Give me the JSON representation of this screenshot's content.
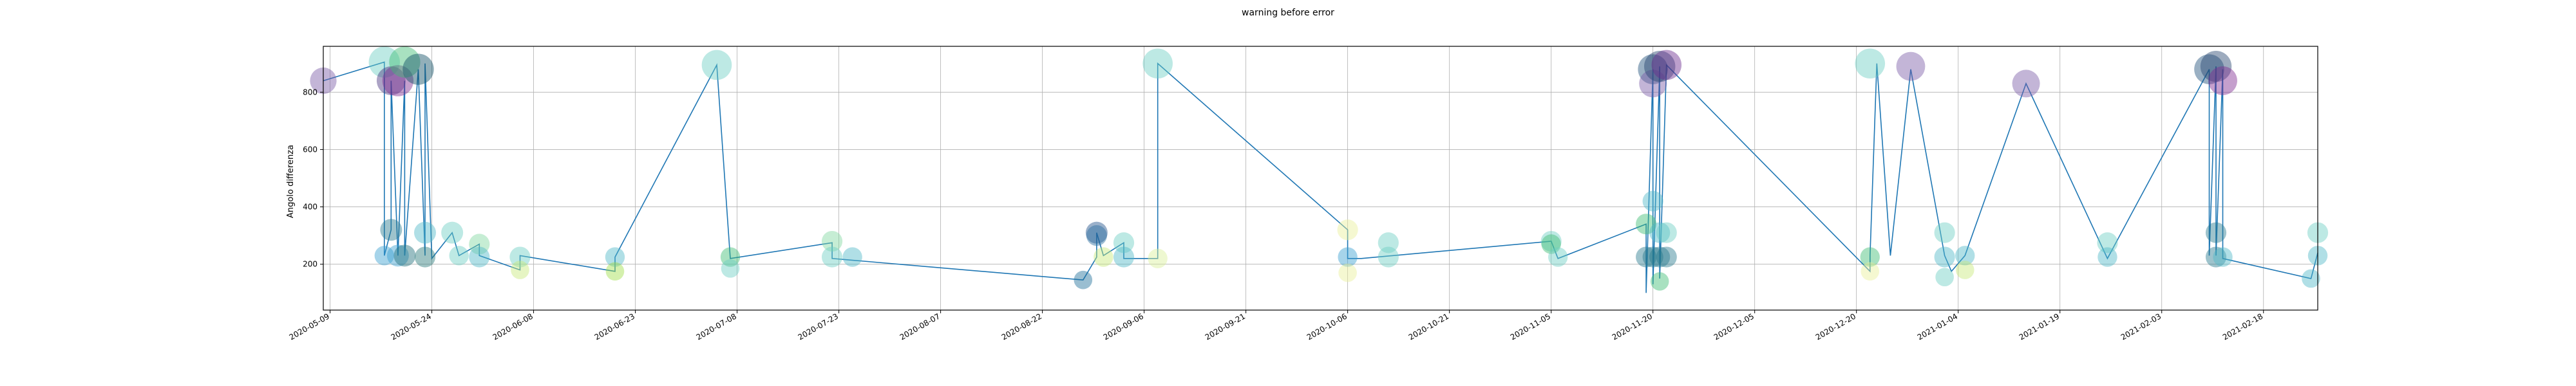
{
  "chart_data": {
    "type": "scatter",
    "title": "warning before error",
    "xlabel": "",
    "ylabel": "Angolo differenza",
    "x_ticks": [
      "2020-05-09",
      "2020-05-24",
      "2020-06-08",
      "2020-06-23",
      "2020-07-08",
      "2020-07-23",
      "2020-08-07",
      "2020-08-22",
      "2020-09-06",
      "2020-09-21",
      "2020-10-06",
      "2020-10-21",
      "2020-11-05",
      "2020-11-20",
      "2020-12-05",
      "2020-12-20",
      "2021-01-04",
      "2021-01-19",
      "2021-02-03",
      "2021-02-18"
    ],
    "y_ticks": [
      200,
      400,
      600,
      800
    ],
    "xlim": [
      "2020-05-08",
      "2021-02-26"
    ],
    "ylim": [
      40,
      960
    ],
    "grid": true,
    "line_color": "#1f77b4",
    "line": [
      [
        "2020-05-08",
        840
      ],
      [
        "2020-05-17",
        905
      ],
      [
        "2020-05-17",
        230
      ],
      [
        "2020-05-18",
        320
      ],
      [
        "2020-05-18",
        840
      ],
      [
        "2020-05-19",
        230
      ],
      [
        "2020-05-20",
        840
      ],
      [
        "2020-05-20",
        230
      ],
      [
        "2020-05-22",
        880
      ],
      [
        "2020-05-23",
        230
      ],
      [
        "2020-05-23",
        900
      ],
      [
        "2020-05-24",
        220
      ],
      [
        "2020-05-27",
        310
      ],
      [
        "2020-05-28",
        230
      ],
      [
        "2020-05-31",
        270
      ],
      [
        "2020-05-31",
        230
      ],
      [
        "2020-06-06",
        180
      ],
      [
        "2020-06-06",
        230
      ],
      [
        "2020-06-20",
        175
      ],
      [
        "2020-06-20",
        225
      ],
      [
        "2020-07-05",
        895
      ],
      [
        "2020-07-07",
        220
      ],
      [
        "2020-07-22",
        275
      ],
      [
        "2020-07-22",
        220
      ],
      [
        "2020-08-28",
        145
      ],
      [
        "2020-08-30",
        225
      ],
      [
        "2020-08-30",
        310
      ],
      [
        "2020-08-31",
        230
      ],
      [
        "2020-09-03",
        275
      ],
      [
        "2020-09-03",
        220
      ],
      [
        "2020-09-08",
        220
      ],
      [
        "2020-09-08",
        900
      ],
      [
        "2020-10-06",
        320
      ],
      [
        "2020-10-06",
        220
      ],
      [
        "2020-10-08",
        220
      ],
      [
        "2020-11-05",
        280
      ],
      [
        "2020-11-06",
        220
      ],
      [
        "2020-11-19",
        340
      ],
      [
        "2020-11-19",
        100
      ],
      [
        "2020-11-20",
        880
      ],
      [
        "2020-11-20",
        130
      ],
      [
        "2020-11-21",
        890
      ],
      [
        "2020-11-21",
        150
      ],
      [
        "2020-11-22",
        895
      ],
      [
        "2020-12-22",
        175
      ],
      [
        "2020-12-22",
        230
      ],
      [
        "2020-12-23",
        900
      ],
      [
        "2020-12-25",
        230
      ],
      [
        "2020-12-28",
        880
      ],
      [
        "2021-01-02",
        230
      ],
      [
        "2021-01-03",
        175
      ],
      [
        "2021-01-05",
        230
      ],
      [
        "2021-01-14",
        830
      ],
      [
        "2021-01-26",
        220
      ],
      [
        "2021-02-10",
        880
      ],
      [
        "2021-02-10",
        230
      ],
      [
        "2021-02-11",
        890
      ],
      [
        "2021-02-11",
        230
      ],
      [
        "2021-02-12",
        880
      ],
      [
        "2021-02-12",
        220
      ],
      [
        "2021-02-25",
        150
      ],
      [
        "2021-02-26",
        240
      ]
    ],
    "points": [
      {
        "x": "2020-05-08",
        "y": 840,
        "size": 0.7,
        "color": "#7b5aa6"
      },
      {
        "x": "2020-05-17",
        "y": 905,
        "size": 0.9,
        "color": "#6dcfc3"
      },
      {
        "x": "2020-05-17",
        "y": 230,
        "size": 0.4,
        "color": "#3a9fd0"
      },
      {
        "x": "2020-05-18",
        "y": 320,
        "size": 0.5,
        "color": "#287a8e"
      },
      {
        "x": "2020-05-18",
        "y": 840,
        "size": 0.8,
        "color": "#46337e"
      },
      {
        "x": "2020-05-19",
        "y": 230,
        "size": 0.5,
        "color": "#3a9fd0"
      },
      {
        "x": "2020-05-19",
        "y": 840,
        "size": 0.9,
        "color": "#7e2a90"
      },
      {
        "x": "2020-05-20",
        "y": 905,
        "size": 0.9,
        "color": "#3fbc73"
      },
      {
        "x": "2020-05-20",
        "y": 230,
        "size": 0.5,
        "color": "#1f6f7a"
      },
      {
        "x": "2020-05-22",
        "y": 880,
        "size": 0.9,
        "color": "#0e4d64"
      },
      {
        "x": "2020-05-23",
        "y": 310,
        "size": 0.5,
        "color": "#4fb8c8"
      },
      {
        "x": "2020-05-23",
        "y": 225,
        "size": 0.45,
        "color": "#2b7a7a"
      },
      {
        "x": "2020-05-27",
        "y": 310,
        "size": 0.5,
        "color": "#6dcfc3"
      },
      {
        "x": "2020-05-28",
        "y": 230,
        "size": 0.4,
        "color": "#6dcfc3"
      },
      {
        "x": "2020-05-31",
        "y": 270,
        "size": 0.45,
        "color": "#80d7a0"
      },
      {
        "x": "2020-05-31",
        "y": 225,
        "size": 0.45,
        "color": "#4fb8c8"
      },
      {
        "x": "2020-06-06",
        "y": 225,
        "size": 0.45,
        "color": "#6dcfc3"
      },
      {
        "x": "2020-06-06",
        "y": 180,
        "size": 0.35,
        "color": "#c8e87a"
      },
      {
        "x": "2020-06-20",
        "y": 225,
        "size": 0.4,
        "color": "#4fb8c8"
      },
      {
        "x": "2020-06-20",
        "y": 175,
        "size": 0.35,
        "color": "#9fde4a"
      },
      {
        "x": "2020-07-05",
        "y": 895,
        "size": 0.85,
        "color": "#6dcfc3"
      },
      {
        "x": "2020-07-07",
        "y": 225,
        "size": 0.4,
        "color": "#3fbc73"
      },
      {
        "x": "2020-07-07",
        "y": 185,
        "size": 0.35,
        "color": "#6dcfc3"
      },
      {
        "x": "2020-07-22",
        "y": 280,
        "size": 0.45,
        "color": "#80d7a0"
      },
      {
        "x": "2020-07-22",
        "y": 225,
        "size": 0.45,
        "color": "#6dcfc3"
      },
      {
        "x": "2020-07-25",
        "y": 225,
        "size": 0.4,
        "color": "#4fb8c8"
      },
      {
        "x": "2020-08-28",
        "y": 145,
        "size": 0.35,
        "color": "#1f6f9a"
      },
      {
        "x": "2020-08-30",
        "y": 310,
        "size": 0.5,
        "color": "#1f4f8a"
      },
      {
        "x": "2020-08-30",
        "y": 300,
        "size": 0.45,
        "color": "#2a6fa0"
      },
      {
        "x": "2020-08-31",
        "y": 225,
        "size": 0.4,
        "color": "#c8e87a"
      },
      {
        "x": "2020-09-03",
        "y": 275,
        "size": 0.45,
        "color": "#6dcfc3"
      },
      {
        "x": "2020-09-03",
        "y": 225,
        "size": 0.45,
        "color": "#4fb8c8"
      },
      {
        "x": "2020-09-08",
        "y": 900,
        "size": 0.85,
        "color": "#6dcfc3"
      },
      {
        "x": "2020-09-08",
        "y": 220,
        "size": 0.4,
        "color": "#d9ef9a"
      },
      {
        "x": "2020-10-06",
        "y": 320,
        "size": 0.45,
        "color": "#e8f09a"
      },
      {
        "x": "2020-10-06",
        "y": 225,
        "size": 0.4,
        "color": "#3a9fd0"
      },
      {
        "x": "2020-10-06",
        "y": 170,
        "size": 0.35,
        "color": "#e8f09a"
      },
      {
        "x": "2020-10-12",
        "y": 275,
        "size": 0.45,
        "color": "#6dcfc3"
      },
      {
        "x": "2020-10-12",
        "y": 225,
        "size": 0.45,
        "color": "#6dcfc3"
      },
      {
        "x": "2020-11-05",
        "y": 280,
        "size": 0.45,
        "color": "#6dcfc3"
      },
      {
        "x": "2020-11-05",
        "y": 270,
        "size": 0.4,
        "color": "#3fbc73"
      },
      {
        "x": "2020-11-06",
        "y": 225,
        "size": 0.4,
        "color": "#6dcfc3"
      },
      {
        "x": "2020-11-19",
        "y": 340,
        "size": 0.45,
        "color": "#3fbc73"
      },
      {
        "x": "2020-11-19",
        "y": 225,
        "size": 0.45,
        "color": "#287a8e"
      },
      {
        "x": "2020-11-20",
        "y": 420,
        "size": 0.45,
        "color": "#4fb8c8"
      },
      {
        "x": "2020-11-20",
        "y": 880,
        "size": 0.85,
        "color": "#1f4f7a"
      },
      {
        "x": "2020-11-20",
        "y": 830,
        "size": 0.75,
        "color": "#7b5aa6"
      },
      {
        "x": "2020-11-20",
        "y": 225,
        "size": 0.45,
        "color": "#287a8e"
      },
      {
        "x": "2020-11-21",
        "y": 890,
        "size": 0.9,
        "color": "#26456e"
      },
      {
        "x": "2020-11-21",
        "y": 310,
        "size": 0.45,
        "color": "#4fb8c8"
      },
      {
        "x": "2020-11-21",
        "y": 225,
        "size": 0.45,
        "color": "#287a8e"
      },
      {
        "x": "2020-11-21",
        "y": 140,
        "size": 0.35,
        "color": "#3fbc73"
      },
      {
        "x": "2020-11-22",
        "y": 895,
        "size": 0.85,
        "color": "#6a2a8e"
      },
      {
        "x": "2020-11-22",
        "y": 310,
        "size": 0.45,
        "color": "#6dcfc3"
      },
      {
        "x": "2020-11-22",
        "y": 225,
        "size": 0.45,
        "color": "#287a8e"
      },
      {
        "x": "2020-12-22",
        "y": 900,
        "size": 0.85,
        "color": "#6dcfc3"
      },
      {
        "x": "2020-12-22",
        "y": 225,
        "size": 0.4,
        "color": "#3fbc73"
      },
      {
        "x": "2020-12-22",
        "y": 175,
        "size": 0.35,
        "color": "#e8f09a"
      },
      {
        "x": "2020-12-28",
        "y": 890,
        "size": 0.8,
        "color": "#7b5aa6"
      },
      {
        "x": "2021-01-02",
        "y": 310,
        "size": 0.45,
        "color": "#6dcfc3"
      },
      {
        "x": "2021-01-02",
        "y": 225,
        "size": 0.45,
        "color": "#4fb8c8"
      },
      {
        "x": "2021-01-02",
        "y": 155,
        "size": 0.35,
        "color": "#6dcfc3"
      },
      {
        "x": "2021-01-05",
        "y": 230,
        "size": 0.4,
        "color": "#4fb8c8"
      },
      {
        "x": "2021-01-05",
        "y": 180,
        "size": 0.35,
        "color": "#c8e87a"
      },
      {
        "x": "2021-01-14",
        "y": 830,
        "size": 0.75,
        "color": "#7b5aa6"
      },
      {
        "x": "2021-01-26",
        "y": 275,
        "size": 0.45,
        "color": "#6dcfc3"
      },
      {
        "x": "2021-01-26",
        "y": 225,
        "size": 0.4,
        "color": "#4fb8c8"
      },
      {
        "x": "2021-02-10",
        "y": 880,
        "size": 0.85,
        "color": "#1f4f7a"
      },
      {
        "x": "2021-02-11",
        "y": 890,
        "size": 0.9,
        "color": "#26456e"
      },
      {
        "x": "2021-02-12",
        "y": 840,
        "size": 0.8,
        "color": "#7e2a90"
      },
      {
        "x": "2021-02-11",
        "y": 310,
        "size": 0.45,
        "color": "#287a8e"
      },
      {
        "x": "2021-02-11",
        "y": 225,
        "size": 0.45,
        "color": "#287a8e"
      },
      {
        "x": "2021-02-12",
        "y": 225,
        "size": 0.4,
        "color": "#4fb8c8"
      },
      {
        "x": "2021-02-26",
        "y": 310,
        "size": 0.45,
        "color": "#6dcfc3"
      },
      {
        "x": "2021-02-26",
        "y": 230,
        "size": 0.4,
        "color": "#4fb8c8"
      },
      {
        "x": "2021-02-25",
        "y": 150,
        "size": 0.35,
        "color": "#4fb8c8"
      }
    ]
  }
}
